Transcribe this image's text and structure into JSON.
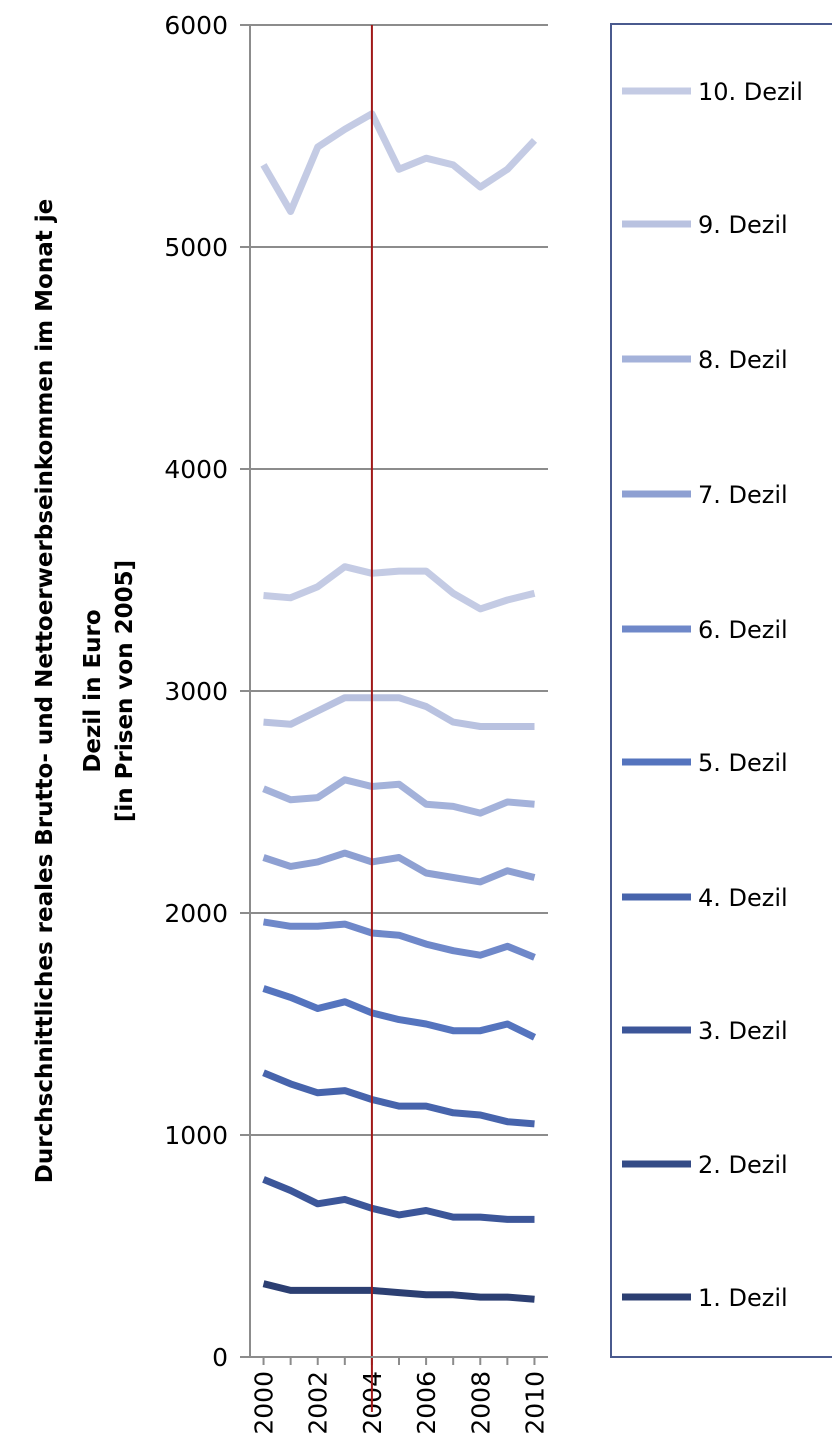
{
  "chart_data": {
    "type": "line",
    "ylabel_lines": [
      "Durchschnittliches reales Brutto- und Nettoerwerbseinkommen im Monat je",
      "Dezil in Euro",
      "[in Prisen von 2005]"
    ],
    "xlabel": "",
    "x": [
      2000,
      2001,
      2002,
      2003,
      2004,
      2005,
      2006,
      2007,
      2008,
      2009,
      2010
    ],
    "x_tick_labels": [
      "2000",
      "2002",
      "2004",
      "2006",
      "2008",
      "2010"
    ],
    "y_tick_labels": [
      "0",
      "1000",
      "2000",
      "3000",
      "4000",
      "5000",
      "6000"
    ],
    "ylim": [
      0,
      6000
    ],
    "xlim": [
      1999.5,
      2010.5
    ],
    "grid": "horizontal",
    "legend_position": "right",
    "reference_line": {
      "x": 2004,
      "color": "#a01818"
    },
    "legend_entries": [
      {
        "label": "10. Dezil",
        "color": "#c4cbe4"
      },
      {
        "label": "9. Dezil",
        "color": "#b9c2e0"
      },
      {
        "label": "8. Dezil",
        "color": "#a4b2da"
      },
      {
        "label": "7. Dezil",
        "color": "#8ea0d2"
      },
      {
        "label": "6. Dezil",
        "color": "#6f88c9"
      },
      {
        "label": "5. Dezil",
        "color": "#5574be"
      },
      {
        "label": "4. Dezil",
        "color": "#4764ac"
      },
      {
        "label": "3. Dezil",
        "color": "#3c5699"
      },
      {
        "label": "2. Dezil",
        "color": "#344b86"
      },
      {
        "label": "1. Dezil",
        "color": "#2c3f72"
      }
    ],
    "series": [
      {
        "color": "#c4cbe4",
        "values": [
          5370,
          5160,
          5450,
          5530,
          5600,
          5350,
          5400,
          5370,
          5270,
          5350,
          5480
        ]
      },
      {
        "color": "#c4cbe4",
        "values": [
          3430,
          3420,
          3470,
          3560,
          3530,
          3540,
          3540,
          3440,
          3370,
          3410,
          3440
        ]
      },
      {
        "color": "#b9c2e0",
        "values": [
          2860,
          2850,
          2910,
          2970,
          2970,
          2970,
          2930,
          2860,
          2840,
          2840,
          2840
        ]
      },
      {
        "color": "#a4b2da",
        "values": [
          2560,
          2510,
          2520,
          2600,
          2570,
          2580,
          2490,
          2480,
          2450,
          2500,
          2490
        ]
      },
      {
        "color": "#8ea0d2",
        "values": [
          2250,
          2210,
          2230,
          2270,
          2230,
          2250,
          2180,
          2160,
          2140,
          2190,
          2160
        ]
      },
      {
        "color": "#6f88c9",
        "values": [
          1960,
          1940,
          1940,
          1950,
          1910,
          1900,
          1860,
          1830,
          1810,
          1850,
          1800
        ]
      },
      {
        "color": "#5574be",
        "values": [
          1660,
          1620,
          1570,
          1600,
          1550,
          1520,
          1500,
          1470,
          1470,
          1500,
          1440
        ]
      },
      {
        "color": "#4764ac",
        "values": [
          1280,
          1230,
          1190,
          1200,
          1160,
          1130,
          1130,
          1100,
          1090,
          1060,
          1050
        ]
      },
      {
        "color": "#3c5699",
        "values": [
          800,
          750,
          690,
          710,
          670,
          640,
          660,
          630,
          630,
          620,
          620
        ]
      },
      {
        "color": "#2c3f72",
        "values": [
          330,
          300,
          300,
          300,
          300,
          290,
          280,
          280,
          270,
          270,
          260
        ]
      }
    ]
  }
}
